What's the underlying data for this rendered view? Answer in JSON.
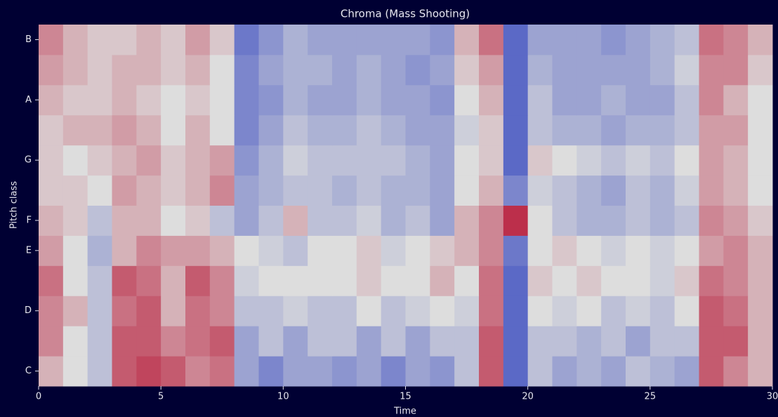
{
  "chart_data": {
    "type": "heatmap",
    "title": "Chroma (Mass Shooting)",
    "x_label": "Time",
    "y_label": "Pitch class",
    "x": [
      0,
      1,
      2,
      3,
      4,
      5,
      6,
      7,
      8,
      9,
      10,
      11,
      12,
      13,
      14,
      15,
      16,
      17,
      18,
      19,
      20,
      21,
      22,
      23,
      24,
      25,
      26,
      27,
      28,
      29
    ],
    "xlim": [
      0,
      30
    ],
    "xticks": [
      0,
      5,
      10,
      15,
      20,
      25,
      30
    ],
    "y_categories": [
      "C",
      null,
      "D",
      null,
      "E",
      "F",
      null,
      "G",
      null,
      "A",
      null,
      "B"
    ],
    "colormap": [
      "#3b4cc0",
      "#dddddd",
      "#b40426"
    ],
    "vlim": [
      0,
      1
    ],
    "values": [
      [
        0.6,
        0.5,
        0.4,
        0.8,
        0.85,
        0.8,
        0.7,
        0.75,
        0.3,
        0.2,
        0.3,
        0.3,
        0.25,
        0.3,
        0.2,
        0.3,
        0.25,
        0.4,
        0.8,
        0.1,
        0.4,
        0.3,
        0.35,
        0.3,
        0.4,
        0.35,
        0.3,
        0.8,
        0.7,
        0.6
      ],
      [
        0.7,
        0.5,
        0.4,
        0.8,
        0.8,
        0.7,
        0.75,
        0.8,
        0.3,
        0.4,
        0.3,
        0.4,
        0.4,
        0.3,
        0.4,
        0.3,
        0.4,
        0.4,
        0.8,
        0.1,
        0.4,
        0.4,
        0.35,
        0.4,
        0.3,
        0.4,
        0.4,
        0.8,
        0.8,
        0.6
      ],
      [
        0.7,
        0.6,
        0.4,
        0.75,
        0.8,
        0.6,
        0.75,
        0.7,
        0.4,
        0.4,
        0.45,
        0.4,
        0.4,
        0.5,
        0.4,
        0.45,
        0.5,
        0.45,
        0.75,
        0.1,
        0.5,
        0.45,
        0.5,
        0.4,
        0.45,
        0.4,
        0.5,
        0.8,
        0.75,
        0.6
      ],
      [
        0.75,
        0.5,
        0.4,
        0.8,
        0.75,
        0.6,
        0.8,
        0.7,
        0.45,
        0.5,
        0.5,
        0.5,
        0.5,
        0.55,
        0.5,
        0.5,
        0.6,
        0.5,
        0.75,
        0.1,
        0.55,
        0.5,
        0.55,
        0.5,
        0.5,
        0.45,
        0.55,
        0.75,
        0.7,
        0.6
      ],
      [
        0.65,
        0.5,
        0.35,
        0.6,
        0.7,
        0.65,
        0.65,
        0.6,
        0.5,
        0.45,
        0.4,
        0.5,
        0.5,
        0.55,
        0.45,
        0.5,
        0.55,
        0.6,
        0.7,
        0.15,
        0.5,
        0.55,
        0.5,
        0.45,
        0.5,
        0.45,
        0.5,
        0.65,
        0.7,
        0.6
      ],
      [
        0.6,
        0.55,
        0.4,
        0.6,
        0.6,
        0.5,
        0.55,
        0.4,
        0.3,
        0.4,
        0.6,
        0.4,
        0.4,
        0.45,
        0.35,
        0.4,
        0.3,
        0.6,
        0.7,
        0.9,
        0.5,
        0.4,
        0.35,
        0.35,
        0.4,
        0.35,
        0.4,
        0.7,
        0.65,
        0.55
      ],
      [
        0.55,
        0.55,
        0.5,
        0.65,
        0.6,
        0.55,
        0.6,
        0.7,
        0.3,
        0.35,
        0.4,
        0.4,
        0.35,
        0.4,
        0.35,
        0.35,
        0.3,
        0.5,
        0.6,
        0.2,
        0.45,
        0.4,
        0.35,
        0.3,
        0.4,
        0.35,
        0.45,
        0.65,
        0.6,
        0.5
      ],
      [
        0.55,
        0.5,
        0.55,
        0.6,
        0.65,
        0.55,
        0.6,
        0.65,
        0.25,
        0.35,
        0.45,
        0.4,
        0.4,
        0.4,
        0.4,
        0.35,
        0.3,
        0.5,
        0.55,
        0.1,
        0.55,
        0.5,
        0.45,
        0.4,
        0.45,
        0.4,
        0.5,
        0.65,
        0.6,
        0.5
      ],
      [
        0.55,
        0.6,
        0.6,
        0.65,
        0.6,
        0.5,
        0.6,
        0.5,
        0.2,
        0.3,
        0.4,
        0.35,
        0.35,
        0.4,
        0.35,
        0.3,
        0.3,
        0.45,
        0.55,
        0.1,
        0.4,
        0.35,
        0.35,
        0.3,
        0.35,
        0.35,
        0.4,
        0.65,
        0.65,
        0.5
      ],
      [
        0.6,
        0.55,
        0.55,
        0.6,
        0.55,
        0.5,
        0.55,
        0.5,
        0.2,
        0.25,
        0.35,
        0.3,
        0.3,
        0.35,
        0.3,
        0.3,
        0.25,
        0.5,
        0.6,
        0.1,
        0.4,
        0.3,
        0.3,
        0.35,
        0.3,
        0.3,
        0.4,
        0.7,
        0.6,
        0.5
      ],
      [
        0.65,
        0.6,
        0.55,
        0.6,
        0.6,
        0.55,
        0.6,
        0.5,
        0.2,
        0.3,
        0.35,
        0.35,
        0.3,
        0.35,
        0.3,
        0.25,
        0.3,
        0.55,
        0.65,
        0.1,
        0.35,
        0.3,
        0.3,
        0.3,
        0.3,
        0.35,
        0.45,
        0.7,
        0.7,
        0.55
      ],
      [
        0.7,
        0.6,
        0.55,
        0.55,
        0.6,
        0.55,
        0.65,
        0.55,
        0.15,
        0.25,
        0.35,
        0.3,
        0.3,
        0.3,
        0.3,
        0.3,
        0.25,
        0.6,
        0.75,
        0.1,
        0.3,
        0.3,
        0.3,
        0.25,
        0.3,
        0.35,
        0.4,
        0.75,
        0.7,
        0.6
      ]
    ]
  }
}
